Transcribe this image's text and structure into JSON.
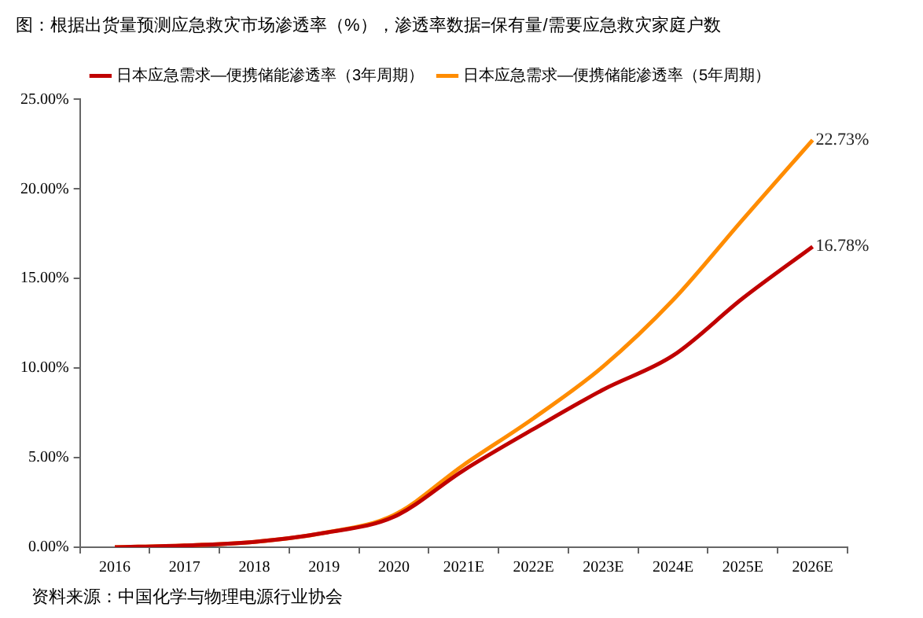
{
  "chart_data": {
    "type": "line",
    "title": "图：根据出货量预测应急救灾市场渗透率（%），渗透率数据=保有量/需要应急救灾家庭户数",
    "categories": [
      "2016",
      "2017",
      "2018",
      "2019",
      "2020",
      "2021E",
      "2022E",
      "2023E",
      "2024E",
      "2025E",
      "2026E"
    ],
    "series": [
      {
        "name": "日本应急需求—便携储能渗透率（3年周期）",
        "color": "#c00000",
        "values": [
          0,
          0.1,
          0.3,
          0.8,
          1.7,
          4.3,
          6.6,
          8.8,
          10.7,
          13.9,
          16.78
        ],
        "value_labels": [
          null,
          null,
          null,
          null,
          null,
          null,
          null,
          null,
          null,
          null,
          "16.78%"
        ]
      },
      {
        "name": "日本应急需求—便携储能渗透率（5年周期）",
        "color": "#ff8c00",
        "values": [
          0,
          0.1,
          0.3,
          0.8,
          1.8,
          4.6,
          7.2,
          10.1,
          13.8,
          18.3,
          22.73
        ],
        "value_labels": [
          null,
          null,
          null,
          null,
          null,
          null,
          null,
          null,
          null,
          null,
          "22.73%"
        ]
      }
    ],
    "ylim": [
      0,
      25
    ],
    "yticks": [
      {
        "value": 0,
        "label": "0.00%"
      },
      {
        "value": 5,
        "label": "5.00%"
      },
      {
        "value": 10,
        "label": "10.00%"
      },
      {
        "value": 15,
        "label": "15.00%"
      },
      {
        "value": 20,
        "label": "20.00%"
      },
      {
        "value": 25,
        "label": "25.00%"
      }
    ],
    "grid": false,
    "legend": "top",
    "marker": "none",
    "line_style": "solid",
    "annotations": [
      "资料来源：中国化学与物理电源行业协会"
    ]
  }
}
